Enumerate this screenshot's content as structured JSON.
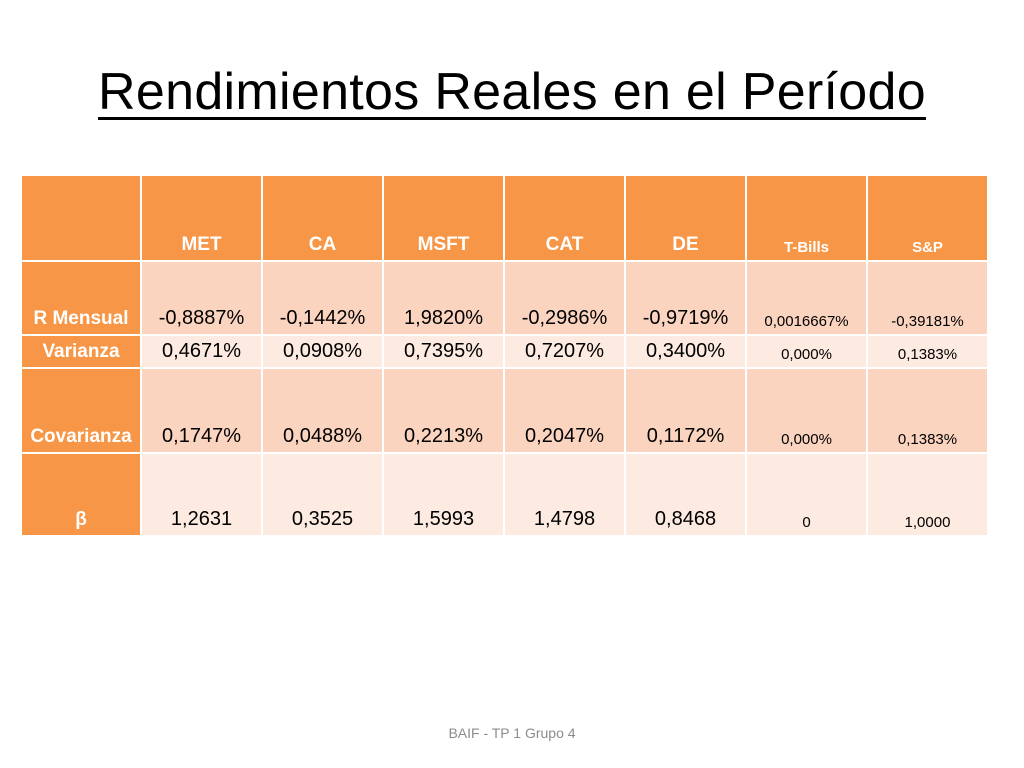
{
  "slide": {
    "title": "Rendimientos Reales en el Período",
    "footer": "BAIF - TP 1 Grupo 4"
  },
  "table": {
    "columns": [
      "MET",
      "CA",
      "MSFT",
      "CAT",
      "DE",
      "T-Bills",
      "S&P"
    ],
    "rows": [
      {
        "label": "R Mensual",
        "values": [
          "-0,8887%",
          "-0,1442%",
          "1,9820%",
          "-0,2986%",
          "-0,9719%",
          "0,0016667%",
          "-0,39181%"
        ]
      },
      {
        "label": "Varianza",
        "values": [
          "0,4671%",
          "0,0908%",
          "0,7395%",
          "0,7207%",
          "0,3400%",
          "0,000%",
          "0,1383%"
        ]
      },
      {
        "label": "Covarianza",
        "values": [
          "0,1747%",
          "0,0488%",
          "0,2213%",
          "0,2047%",
          "0,1172%",
          "0,000%",
          "0,1383%"
        ]
      },
      {
        "label": "β",
        "values": [
          "1,2631",
          "0,3525",
          "1,5993",
          "1,4798",
          "0,8468",
          "0",
          "1,0000"
        ]
      }
    ]
  },
  "colors": {
    "header_bg": "#f79646",
    "row_odd_bg": "#fbd4c0",
    "row_even_bg": "#fdeae0",
    "header_text": "#ffffff"
  }
}
